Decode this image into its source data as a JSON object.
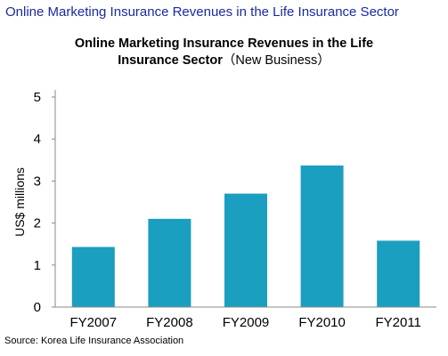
{
  "page_header": "Online Marketing Insurance Revenues in the Life Insurance Sector",
  "source_note": "Source: Korea Life Insurance Association",
  "bar_color": "#1a9fc0",
  "header_color": "#1a2a9e",
  "chart_data": {
    "type": "bar",
    "title_line1": "Online Marketing Insurance Revenues in the Life",
    "title_line2_bold": "Insurance Sector",
    "title_line2_suffix": "（New Business）",
    "categories": [
      "FY2007",
      "FY2008",
      "FY2009",
      "FY2010",
      "FY2011"
    ],
    "values": [
      1.43,
      2.1,
      2.7,
      3.37,
      1.58
    ],
    "xlabel": "",
    "ylabel": "US$ millions",
    "ylim": [
      0,
      5
    ],
    "yticks": [
      0,
      1,
      2,
      3,
      4,
      5
    ],
    "grid": false,
    "legend": "none"
  }
}
